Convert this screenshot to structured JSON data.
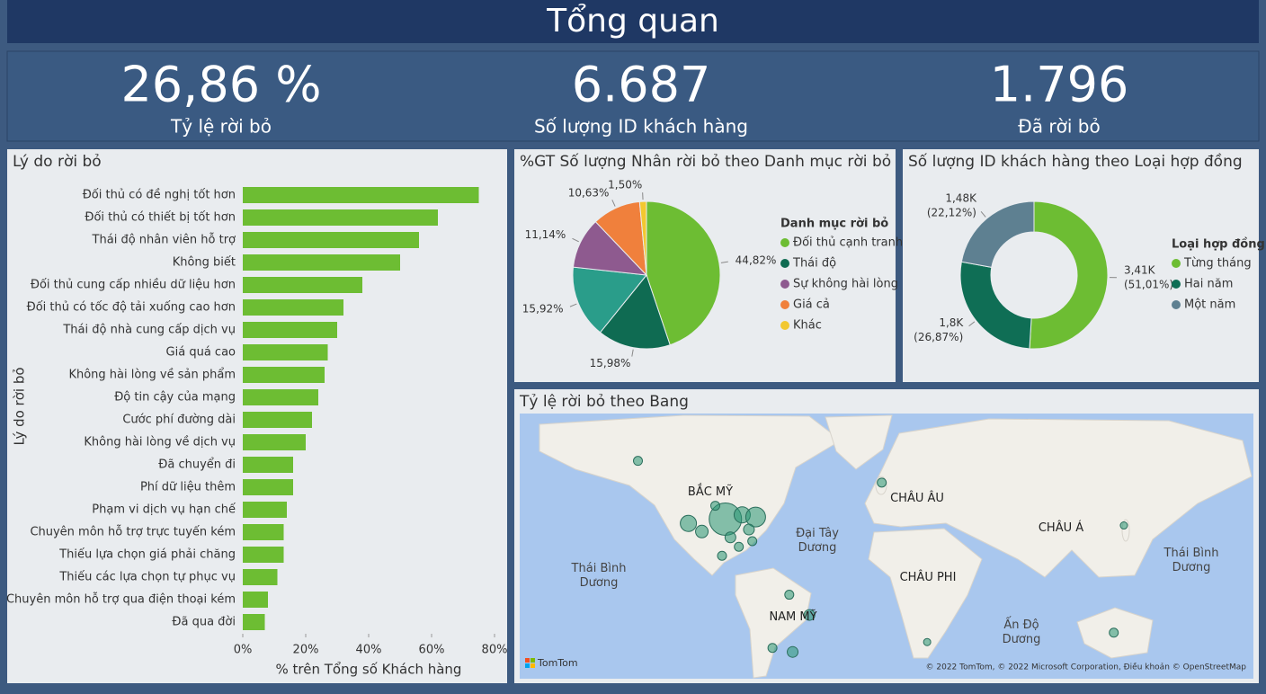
{
  "header": {
    "title": "Tổng quan"
  },
  "kpis": [
    {
      "value": "26,86 %",
      "label": "Tỷ lệ rời bỏ"
    },
    {
      "value": "6.687",
      "label": "Số lượng ID khách hàng"
    },
    {
      "value": "1.796",
      "label": "Đã rời bỏ"
    }
  ],
  "chart_data": [
    {
      "type": "bar",
      "orientation": "horizontal",
      "title": "Lý do rời bỏ",
      "x_label": "% trên Tổng số Khách hàng",
      "y_label": "Lý do rời bỏ",
      "color": "#6dbd33",
      "categories": [
        "Đối thủ có đề nghị tốt hơn",
        "Đối thủ có thiết bị tốt hơn",
        "Thái độ nhân viên hỗ trợ",
        "Không biết",
        "Đối thủ cung cấp nhiều dữ liệu hơn",
        "Đối thủ có tốc độ tải xuống cao hơn",
        "Thái độ nhà cung cấp dịch vụ",
        "Giá quá cao",
        "Không hài lòng về sản phẩm",
        "Độ tin cậy của mạng",
        "Cước phí đường dài",
        "Không hài lòng về dịch vụ",
        "Đã chuyển đi",
        "Phí dữ liệu thêm",
        "Phạm vi dịch vụ hạn chế",
        "Chuyên môn hỗ trợ trực tuyến kém",
        "Thiếu lựa chọn giá phải chăng",
        "Thiếu các lựa chọn tự phục vụ",
        "Chuyên môn hỗ trợ qua điện thoại kém",
        "Đã qua đời"
      ],
      "values": [
        75,
        62,
        56,
        50,
        38,
        32,
        30,
        27,
        26,
        24,
        22,
        20,
        16,
        16,
        14,
        13,
        13,
        11,
        8,
        7
      ],
      "xlim": [
        0,
        80
      ],
      "xticks": [
        {
          "value": 0,
          "label": "0%"
        },
        {
          "value": 20,
          "label": "20%"
        },
        {
          "value": 40,
          "label": "40%"
        },
        {
          "value": 60,
          "label": "60%"
        },
        {
          "value": 80,
          "label": "80%"
        }
      ]
    },
    {
      "type": "pie",
      "title": "%GT Số lượng Nhân rời bỏ theo Danh mục rời bỏ",
      "legend_title": "Danh mục rời bỏ",
      "categories": [
        "Đối thủ cạnh tranh",
        "Thái độ",
        null,
        "Sự không hài lòng",
        "Giá cả",
        "Khác"
      ],
      "values": [
        44.82,
        15.98,
        15.92,
        11.14,
        10.63,
        1.5
      ],
      "value_labels": [
        "44,82%",
        "15,98%",
        "15,92%",
        "11,14%",
        "10,63%",
        "1,50%"
      ],
      "colors": [
        "#6dbd33",
        "#0f6b52",
        "#2a9d8a",
        "#8e5a8f",
        "#f0803c",
        "#f2c830"
      ]
    },
    {
      "type": "donut",
      "title": "Số lượng ID khách hàng theo Loại hợp đồng",
      "legend_title": "Loại hợp đồng",
      "categories": [
        "Từng tháng",
        "Hai năm",
        "Một năm"
      ],
      "values": [
        3410,
        1800,
        1480
      ],
      "value_labels": [
        "3,41K",
        "1,8K",
        "1,48K"
      ],
      "share_values": [
        51.01,
        26.87,
        22.12
      ],
      "share_labels": [
        "(51,01%)",
        "(26,87%)",
        "(22,12%)"
      ],
      "colors": [
        "#6dbd33",
        "#0f6e55",
        "#5e8091"
      ]
    },
    {
      "type": "map",
      "title": "Tỷ lệ rời bỏ theo Bang",
      "labels": [
        "BẮC MỸ",
        "CHÂU ÂU",
        "CHÂU Á",
        "CHÂU PHI",
        "NAM MỸ",
        "Đại Tây Dương",
        "Thái Bình Dương",
        "Thái Bình Dương",
        "Ấn Độ Dương"
      ],
      "logo_text": "TomTom",
      "attribution": "© 2022 TomTom, © 2022 Microsoft Corporation, Điều khoản © OpenStreetMap",
      "lon": [
        -150,
        -98,
        -120,
        -112,
        -88,
        -80,
        -84,
        -95,
        -90,
        -82,
        -104,
        -100,
        -5,
        139,
        133,
        22,
        -48,
        -60,
        -70,
        -58
      ],
      "lat": [
        61,
        39,
        37,
        33,
        41,
        40,
        34,
        30,
        25,
        28,
        45,
        20,
        54,
        36,
        -25,
        -30,
        -15,
        -3,
        -33,
        -35
      ],
      "size": [
        5,
        18,
        9,
        7,
        9,
        11,
        6,
        6,
        5,
        5,
        5,
        5,
        5,
        4,
        5,
        4,
        6,
        5,
        5,
        6
      ]
    }
  ]
}
